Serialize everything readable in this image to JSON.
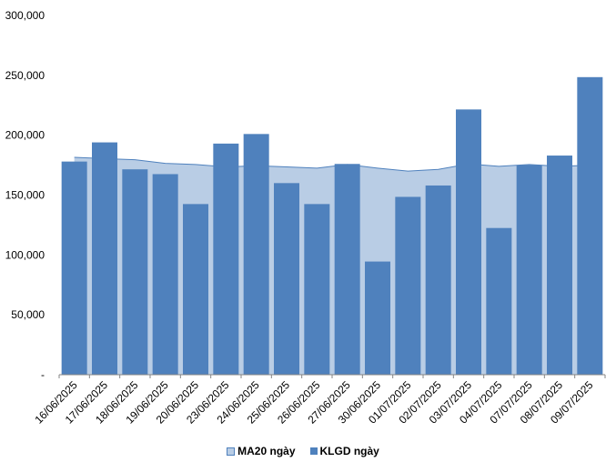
{
  "chart_data": {
    "type": "bar",
    "categories": [
      "16/06/2025",
      "17/06/2025",
      "18/06/2025",
      "19/06/2025",
      "20/06/2025",
      "23/06/2025",
      "24/06/2025",
      "25/06/2025",
      "26/06/2025",
      "27/06/2025",
      "30/06/2025",
      "01/07/2025",
      "02/07/2025",
      "03/07/2025",
      "04/07/2025",
      "07/07/2025",
      "08/07/2025",
      "09/07/2025"
    ],
    "series": [
      {
        "name": "KLGD ngày",
        "type": "bar",
        "color": "#4F81BD",
        "values": [
          178000,
          194000,
          171500,
          167500,
          142500,
          193000,
          201000,
          160000,
          142500,
          176000,
          94500,
          148500,
          158000,
          221500,
          122500,
          175000,
          183000,
          248500
        ]
      },
      {
        "name": "MA20 ngày",
        "type": "area",
        "color": "#B9CDE5",
        "line_color": "#4F81BD",
        "values": [
          181500,
          180500,
          179500,
          176500,
          175500,
          173500,
          174500,
          173500,
          172500,
          175500,
          172500,
          170000,
          171500,
          176000,
          174000,
          175500,
          174000,
          175000
        ]
      }
    ],
    "y_tick_labels": [
      "-",
      "50,000",
      "100,000",
      "150,000",
      "200,000",
      "250,000",
      "300,000"
    ],
    "ylim": [
      0,
      300000
    ],
    "legend_position": "bottom",
    "grid": false
  }
}
